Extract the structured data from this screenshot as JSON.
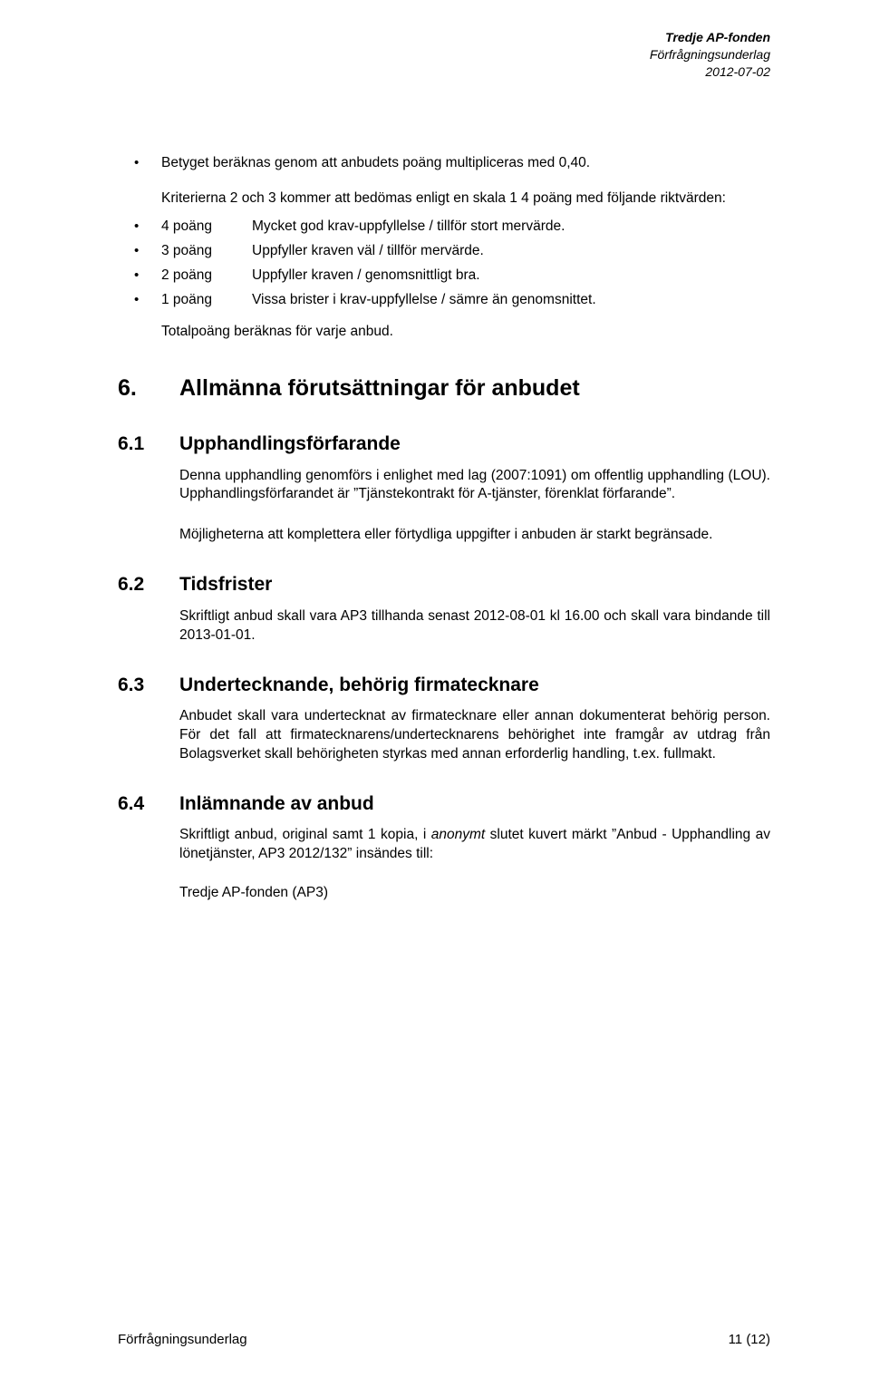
{
  "header": {
    "line1": "Tredje AP-fonden",
    "line2": "Förfrågningsunderlag",
    "line3": "2012-07-02"
  },
  "intro_bullet": "Betyget beräknas genom att anbudets poäng multipliceras med 0,40.",
  "criteria_intro": "Kriterierna 2 och 3 kommer att bedömas enligt en skala 1 4 poäng med följande riktvärden:",
  "points": [
    {
      "label": "4 poäng",
      "desc": "Mycket god krav-uppfyllelse / tillför stort mervärde."
    },
    {
      "label": "3 poäng",
      "desc": "Uppfyller kraven väl / tillför mervärde."
    },
    {
      "label": "2 poäng",
      "desc": "Uppfyller kraven / genomsnittligt bra."
    },
    {
      "label": "1 poäng",
      "desc": "Vissa brister i krav-uppfyllelse / sämre än genomsnittet."
    }
  ],
  "total": "Totalpoäng beräknas för varje anbud.",
  "s6": {
    "num": "6.",
    "title": "Allmänna förutsättningar för anbudet"
  },
  "s61": {
    "num": "6.1",
    "title": "Upphandlingsförfarande",
    "p1": "Denna upphandling genomförs i enlighet med lag (2007:1091) om offentlig upphandling (LOU). Upphandlingsförfarandet är ”Tjänstekontrakt för A-tjänster, förenklat förfarande”.",
    "p2": "Möjligheterna att komplettera eller förtydliga uppgifter i anbuden är starkt begränsade."
  },
  "s62": {
    "num": "6.2",
    "title": "Tidsfrister",
    "p1": "Skriftligt anbud skall vara AP3 tillhanda senast 2012-08-01 kl 16.00 och skall vara bindande till 2013-01-01."
  },
  "s63": {
    "num": "6.3",
    "title": "Undertecknande, behörig firmatecknare",
    "p1": "Anbudet skall vara undertecknat av firmatecknare eller annan dokumenterat behörig person. För det fall att firmatecknarens/undertecknarens behörighet inte framgår av utdrag från Bolagsverket skall behörigheten styrkas med annan erforderlig handling, t.ex. fullmakt."
  },
  "s64": {
    "num": "6.4",
    "title": "Inlämnande av anbud",
    "p1": "Skriftligt anbud, original samt 1 kopia, i anonymt slutet kuvert märkt ”Anbud - Upphandling av lönetjänster, AP3 2012/132” insändes till:",
    "p2": "Tredje AP-fonden (AP3)"
  },
  "footer": {
    "left": "Förfrågningsunderlag",
    "right": "11 (12)"
  }
}
